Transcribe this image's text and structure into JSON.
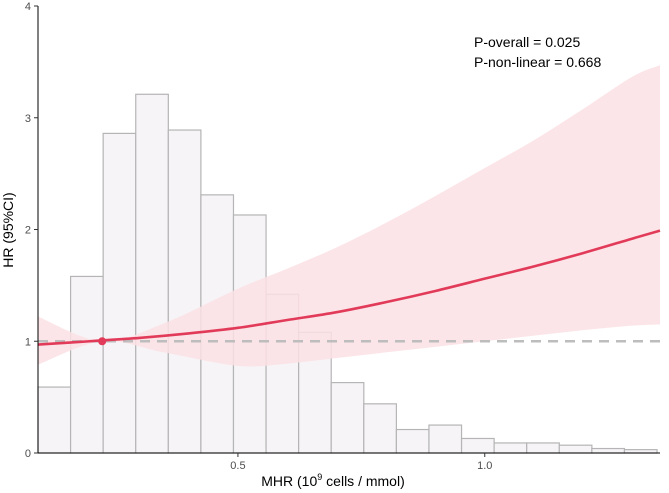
{
  "chart_data": {
    "type": "histogram+line",
    "xlabel_prefix": "MHR (10",
    "xlabel_sup": "9",
    "xlabel_suffix": " cells / mmol)",
    "ylabel": "HR (95%CI)",
    "xlim": [
      0.095,
      1.355
    ],
    "ylim": [
      0,
      4
    ],
    "x_ticks": [
      0.5,
      1.0
    ],
    "x_tick_labels": [
      "0.5",
      "1.0"
    ],
    "y_ticks": [
      0,
      1,
      2,
      3,
      4
    ],
    "y_tick_labels": [
      "0",
      "1",
      "2",
      "3",
      "4"
    ],
    "reference_line": 1,
    "reference_point": {
      "x": 0.225,
      "y": 1
    },
    "annotations": [
      "P-overall = 0.025",
      "P-non-linear = 0.668"
    ],
    "histogram": {
      "bin_width": 0.066,
      "bin_start": 0.095,
      "heights": [
        0.59,
        1.58,
        2.86,
        3.21,
        2.89,
        2.31,
        2.13,
        1.42,
        1.08,
        0.63,
        0.44,
        0.21,
        0.25,
        0.13,
        0.09,
        0.09,
        0.07,
        0.04,
        0.03
      ]
    },
    "hr_curve": {
      "x": [
        0.095,
        0.2,
        0.3,
        0.4,
        0.5,
        0.6,
        0.7,
        0.8,
        0.9,
        1.0,
        1.1,
        1.2,
        1.3,
        1.355
      ],
      "y": [
        0.97,
        1.0,
        1.03,
        1.07,
        1.12,
        1.19,
        1.26,
        1.35,
        1.45,
        1.56,
        1.67,
        1.79,
        1.92,
        1.99
      ]
    },
    "ci_band": {
      "x": [
        0.095,
        0.225,
        0.35,
        0.5,
        0.6,
        0.7,
        0.8,
        0.9,
        1.0,
        1.1,
        1.2,
        1.3,
        1.355
      ],
      "lower": [
        0.79,
        1.0,
        0.9,
        0.78,
        0.8,
        0.85,
        0.9,
        0.95,
        1.0,
        1.05,
        1.1,
        1.14,
        1.15
      ],
      "upper": [
        1.22,
        1.0,
        1.16,
        1.47,
        1.65,
        1.84,
        2.06,
        2.3,
        2.55,
        2.8,
        3.08,
        3.37,
        3.47
      ]
    },
    "colors": {
      "line": "#e23b5a",
      "band": "#fbe0e4",
      "bar_fill": "#f6f4f7",
      "bar_stroke": "#b5b5b5",
      "reference": "#bdbdbd",
      "axis": "#000000"
    }
  }
}
